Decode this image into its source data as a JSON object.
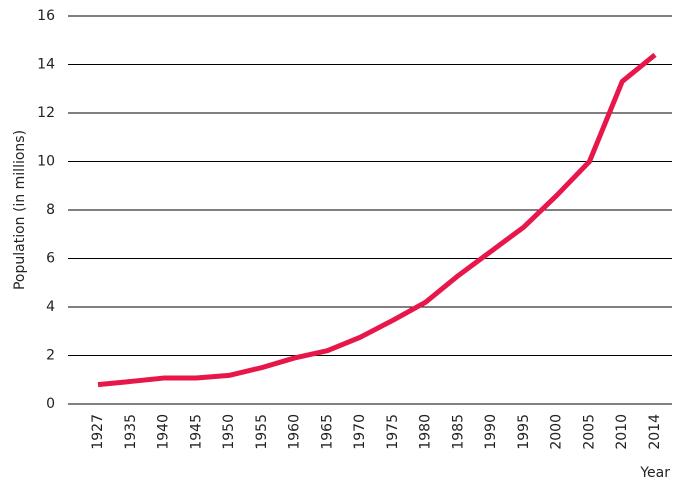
{
  "chart_data": {
    "type": "line",
    "x_label": "Year",
    "y_label": "Population (in millions)",
    "categories": [
      "1927",
      "1935",
      "1940",
      "1945",
      "1950",
      "1955",
      "1960",
      "1965",
      "1970",
      "1975",
      "1980",
      "1985",
      "1990",
      "1995",
      "2000",
      "2005",
      "2010",
      "2014"
    ],
    "series": [
      {
        "name": "Population",
        "color": "#e8174a",
        "values": [
          0.8,
          0.93,
          1.07,
          1.07,
          1.18,
          1.5,
          1.9,
          2.2,
          2.75,
          3.45,
          4.2,
          5.3,
          6.3,
          7.3,
          8.6,
          10.0,
          13.3,
          14.4
        ]
      }
    ],
    "ylim": [
      0,
      16
    ],
    "yticks": [
      0,
      2,
      4,
      6,
      8,
      10,
      12,
      14,
      16
    ],
    "grid": true
  }
}
